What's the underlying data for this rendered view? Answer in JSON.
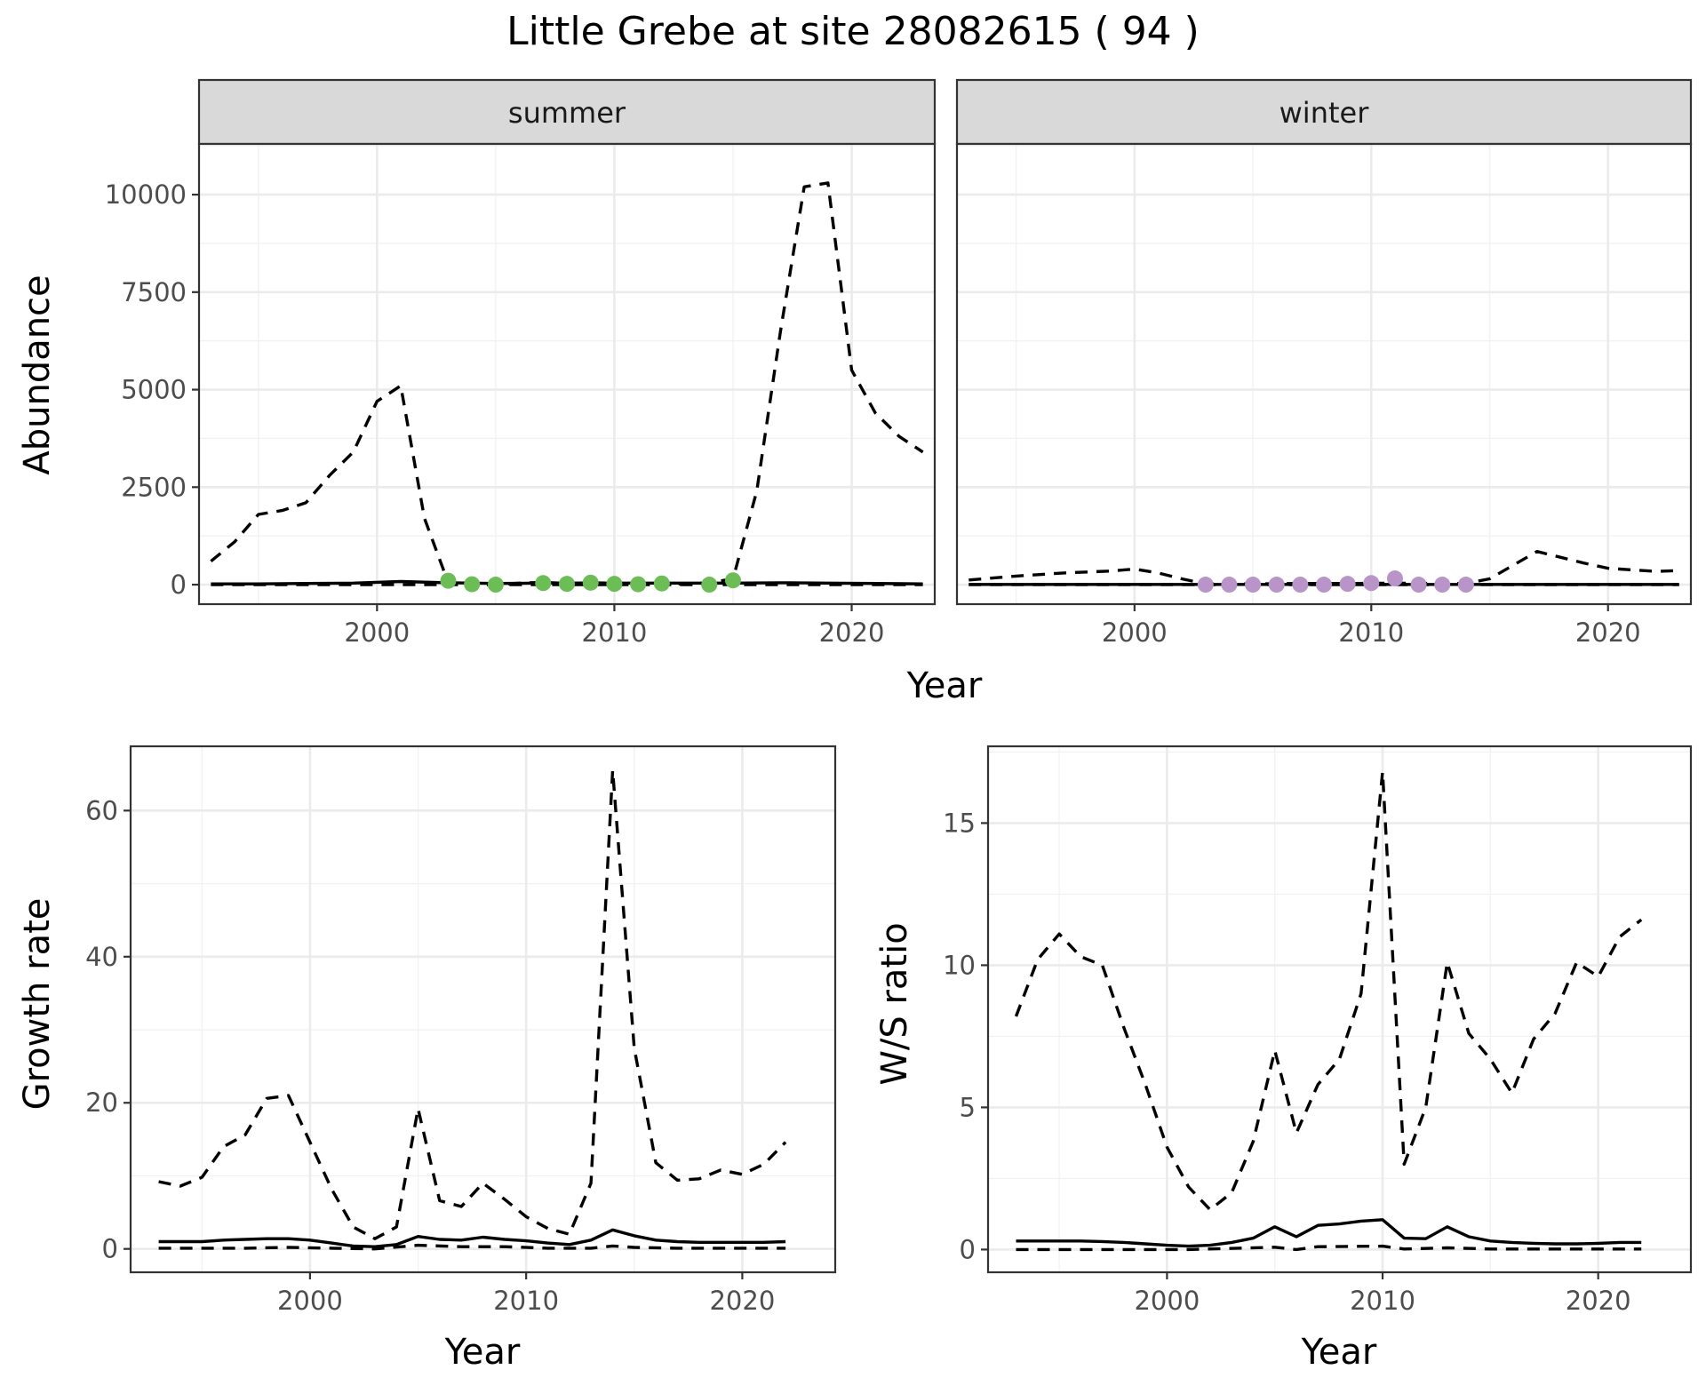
{
  "title": "Little Grebe at site 28082615 ( 94 )",
  "colors": {
    "summer_points": "#6dbd57",
    "winter_points": "#b994c9"
  },
  "chart_data": [
    {
      "type": "line",
      "facet": "summer",
      "xlabel": "Year",
      "ylabel": "Abundance",
      "xlim": [
        1992.5,
        2023.5
      ],
      "ylim": [
        -500,
        11300
      ],
      "xticks": [
        2000,
        2010,
        2020
      ],
      "xtick_labels": [
        "2000",
        "2010",
        "2020"
      ],
      "yticks": [
        0,
        2500,
        5000,
        7500,
        10000
      ],
      "ytick_labels": [
        "0",
        "2500",
        "5000",
        "7500",
        "10000"
      ],
      "grid": true,
      "series": [
        {
          "style": "dashed",
          "x": [
            1993,
            1994,
            1995,
            1996,
            1997,
            1998,
            1999,
            2000,
            2001,
            2002,
            2003,
            2004,
            2005,
            2006,
            2007,
            2008,
            2009,
            2010,
            2011,
            2012,
            2013,
            2014,
            2015,
            2016,
            2017,
            2018,
            2019,
            2020,
            2021,
            2022,
            2023
          ],
          "y": [
            600,
            1100,
            1800,
            1900,
            2100,
            2800,
            3400,
            4700,
            5100,
            1700,
            50,
            0,
            0,
            40,
            60,
            30,
            50,
            40,
            20,
            20,
            20,
            50,
            150,
            2400,
            6500,
            10200,
            10300,
            5500,
            4400,
            3800,
            3400
          ]
        },
        {
          "style": "dashed",
          "x": [
            1993,
            2000,
            2005,
            2010,
            2015,
            2020,
            2023
          ],
          "y": [
            0,
            0,
            0,
            0,
            0,
            0,
            0
          ]
        },
        {
          "style": "solid",
          "x": [
            1993,
            1995,
            1997,
            1999,
            2001,
            2003,
            2005,
            2007,
            2009,
            2011,
            2013,
            2015,
            2017,
            2019,
            2021,
            2023
          ],
          "y": [
            20,
            20,
            30,
            40,
            80,
            50,
            30,
            40,
            40,
            40,
            40,
            40,
            50,
            40,
            30,
            20
          ]
        },
        {
          "style": "points",
          "x": [
            2003,
            2004,
            2005,
            2007,
            2008,
            2009,
            2010,
            2011,
            2012,
            2014,
            2015
          ],
          "y": [
            100,
            10,
            0,
            40,
            20,
            50,
            20,
            10,
            30,
            0,
            110
          ]
        }
      ]
    },
    {
      "type": "line",
      "facet": "winter",
      "xlabel": "Year",
      "ylabel": "",
      "xlim": [
        1992.5,
        2023.5
      ],
      "ylim": [
        -500,
        11300
      ],
      "xticks": [
        2000,
        2010,
        2020
      ],
      "xtick_labels": [
        "2000",
        "2010",
        "2020"
      ],
      "yticks": [
        0,
        2500,
        5000,
        7500,
        10000
      ],
      "grid": true,
      "series": [
        {
          "style": "dashed",
          "x": [
            1993,
            1995,
            1997,
            1999,
            2000,
            2001,
            2002,
            2003,
            2005,
            2007,
            2009,
            2011,
            2013,
            2014,
            2015,
            2016,
            2017,
            2018,
            2019,
            2020,
            2021,
            2022,
            2023
          ],
          "y": [
            120,
            220,
            300,
            350,
            400,
            300,
            150,
            20,
            20,
            30,
            30,
            40,
            30,
            30,
            150,
            500,
            850,
            700,
            550,
            420,
            380,
            340,
            360
          ]
        },
        {
          "style": "dashed",
          "x": [
            1993,
            2003,
            2013,
            2023
          ],
          "y": [
            0,
            0,
            0,
            0
          ]
        },
        {
          "style": "solid",
          "x": [
            1993,
            2003,
            2013,
            2023
          ],
          "y": [
            5,
            5,
            5,
            5
          ]
        },
        {
          "style": "points",
          "x": [
            2003,
            2004,
            2005,
            2006,
            2007,
            2008,
            2009,
            2010,
            2011,
            2012,
            2013,
            2014
          ],
          "y": [
            0,
            0,
            0,
            0,
            0,
            0,
            20,
            40,
            160,
            0,
            0,
            0
          ]
        }
      ]
    },
    {
      "type": "line",
      "xlabel": "Year",
      "ylabel": "Growth rate",
      "xlim": [
        1991.7,
        2024.3
      ],
      "ylim": [
        -3.2,
        68.8
      ],
      "xticks": [
        2000,
        2010,
        2020
      ],
      "xtick_labels": [
        "2000",
        "2010",
        "2020"
      ],
      "yticks": [
        0,
        20,
        40,
        60
      ],
      "ytick_labels": [
        "0",
        "20",
        "40",
        "60"
      ],
      "grid": true,
      "series": [
        {
          "style": "dashed",
          "x": [
            1993,
            1994,
            1995,
            1996,
            1997,
            1998,
            1999,
            2000,
            2001,
            2002,
            2003,
            2004,
            2005,
            2006,
            2007,
            2008,
            2009,
            2010,
            2011,
            2012,
            2013,
            2014,
            2015,
            2016,
            2017,
            2018,
            2019,
            2020,
            2021,
            2022
          ],
          "y": [
            9.2,
            8.6,
            9.8,
            14.0,
            15.6,
            20.6,
            21.0,
            14.6,
            8.2,
            3.0,
            1.4,
            3.0,
            19.2,
            6.6,
            5.8,
            9.0,
            6.8,
            4.4,
            2.8,
            2.0,
            9.0,
            65.5,
            27.5,
            11.8,
            9.4,
            9.6,
            10.8,
            10.2,
            11.6,
            14.6
          ]
        },
        {
          "style": "dashed",
          "x": [
            1993,
            1995,
            1997,
            1999,
            2001,
            2003,
            2005,
            2007,
            2009,
            2011,
            2013,
            2014,
            2015,
            2017,
            2019,
            2022
          ],
          "y": [
            0.1,
            0.1,
            0.1,
            0.2,
            0.1,
            0.0,
            0.5,
            0.3,
            0.3,
            0.1,
            0.1,
            0.4,
            0.2,
            0.1,
            0.1,
            0.1
          ]
        },
        {
          "style": "solid",
          "x": [
            1993,
            1994,
            1995,
            1996,
            1997,
            1998,
            1999,
            2000,
            2001,
            2002,
            2003,
            2004,
            2005,
            2006,
            2007,
            2008,
            2009,
            2010,
            2011,
            2012,
            2013,
            2014,
            2015,
            2016,
            2017,
            2018,
            2019,
            2020,
            2021,
            2022
          ],
          "y": [
            1.0,
            1.0,
            1.0,
            1.2,
            1.3,
            1.4,
            1.4,
            1.2,
            0.8,
            0.4,
            0.3,
            0.6,
            1.7,
            1.3,
            1.2,
            1.6,
            1.3,
            1.1,
            0.8,
            0.6,
            1.2,
            2.6,
            1.8,
            1.2,
            1.0,
            0.9,
            0.9,
            0.9,
            0.9,
            1.0
          ]
        }
      ]
    },
    {
      "type": "line",
      "xlabel": "Year",
      "ylabel": "W/S ratio",
      "xlim": [
        1991.7,
        2024.3
      ],
      "ylim": [
        -0.8,
        17.7
      ],
      "xticks": [
        2000,
        2010,
        2020
      ],
      "xtick_labels": [
        "2000",
        "2010",
        "2020"
      ],
      "yticks": [
        0,
        5,
        10,
        15
      ],
      "ytick_labels": [
        "0",
        "5",
        "10",
        "15"
      ],
      "grid": true,
      "series": [
        {
          "style": "dashed",
          "x": [
            1993,
            1994,
            1995,
            1996,
            1997,
            1998,
            1999,
            2000,
            2001,
            2002,
            2003,
            2004,
            2005,
            2006,
            2007,
            2008,
            2009,
            2010,
            2011,
            2012,
            2013,
            2014,
            2015,
            2016,
            2017,
            2018,
            2019,
            2020,
            2021,
            2022
          ],
          "y": [
            8.2,
            10.2,
            11.1,
            10.3,
            10.0,
            7.8,
            5.8,
            3.6,
            2.2,
            1.4,
            2.0,
            3.8,
            7.0,
            4.1,
            5.8,
            6.7,
            9.0,
            16.8,
            3.0,
            5.0,
            10.1,
            7.6,
            6.7,
            5.5,
            7.4,
            8.3,
            10.1,
            9.6,
            11.0,
            11.6
          ]
        },
        {
          "style": "dashed",
          "x": [
            1993,
            1997,
            2001,
            2005,
            2006,
            2007,
            2010,
            2011,
            2013,
            2015,
            2018,
            2022
          ],
          "y": [
            0.0,
            0.0,
            0.0,
            0.08,
            0.0,
            0.1,
            0.12,
            0.02,
            0.06,
            0.02,
            0.02,
            0.02
          ]
        },
        {
          "style": "solid",
          "x": [
            1993,
            1994,
            1995,
            1996,
            1997,
            1998,
            1999,
            2000,
            2001,
            2002,
            2003,
            2004,
            2005,
            2006,
            2007,
            2008,
            2009,
            2010,
            2011,
            2012,
            2013,
            2014,
            2015,
            2016,
            2017,
            2018,
            2019,
            2020,
            2021,
            2022
          ],
          "y": [
            0.3,
            0.3,
            0.3,
            0.3,
            0.28,
            0.25,
            0.2,
            0.15,
            0.12,
            0.15,
            0.25,
            0.4,
            0.8,
            0.45,
            0.85,
            0.9,
            1.0,
            1.05,
            0.4,
            0.38,
            0.8,
            0.45,
            0.3,
            0.25,
            0.22,
            0.2,
            0.2,
            0.22,
            0.25,
            0.25
          ]
        }
      ]
    }
  ],
  "facet_labels": [
    "summer",
    "winter"
  ]
}
